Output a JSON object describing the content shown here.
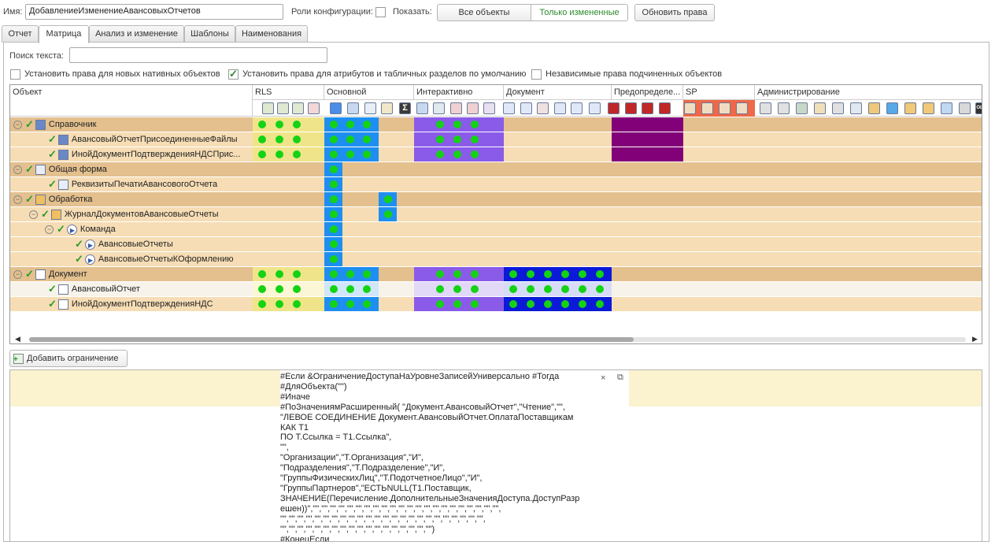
{
  "header": {
    "name_label": "Имя:",
    "name_value": "ДобавлениеИзменениеАвансовыхОтчетов",
    "roles_label": "Роли конфигурации:",
    "show_label": "Показать:",
    "show_all": "Все объекты",
    "show_changed": "Только измененные",
    "refresh": "Обновить права"
  },
  "tabs": [
    "Отчет",
    "Матрица",
    "Анализ и изменение",
    "Шаблоны",
    "Наименования"
  ],
  "search": {
    "label": "Поиск текста:",
    "value": ""
  },
  "options": {
    "opt1": "Установить права для новых нативных объектов",
    "opt2": "Установить права для атрибутов и табличных разделов по умолчанию",
    "opt3": "Независимые права подчиненных объектов"
  },
  "grid": {
    "object_col": "Объект",
    "groups": [
      "RLS",
      "Основной",
      "Интерактивно",
      "Документ",
      "Предопределе...",
      "SP",
      "Администрирование"
    ],
    "rows": [
      {
        "label": "Справочник"
      },
      {
        "label": "АвансовыйОтчетПрисоединенныеФайлы"
      },
      {
        "label": "ИнойДокументПодтвержденияНДСПрис..."
      },
      {
        "label": "Общая форма"
      },
      {
        "label": "РеквизитыПечатиАвансовогоОтчета"
      },
      {
        "label": "Обработка"
      },
      {
        "label": "ЖурналДокументовАвансовыеОтчеты"
      },
      {
        "label": "Команда"
      },
      {
        "label": "АвансовыеОтчеты"
      },
      {
        "label": "АвансовыеОтчетыКОформлению"
      },
      {
        "label": "Документ"
      },
      {
        "label": "АвансовыйОтчет"
      },
      {
        "label": "ИнойДокументПодтвержденияНДС"
      }
    ]
  },
  "add_restriction": "Добавить ограничение",
  "editor": {
    "lines": [
      "#Если &ОграничениеДоступаНаУровнеЗаписейУниверсально #Тогда",
      "#ДляОбъекта(\"\")",
      "#Иначе",
      "#ПоЗначениямРасширенный( \"Документ.АвансовыйОтчет\",\"Чтение\",\"\",",
      "\"ЛЕВОЕ СОЕДИНЕНИЕ Документ.АвансовыйОтчет.ОплатаПоставщикам",
      "КАК Т1",
      "ПО Т.Ссылка = Т1.Ссылка\",",
      "\"\",",
      "\"Организации\",\"Т.Организация\",\"И\",",
      "\"Подразделения\",\"Т.Подразделение\",\"И\",",
      "\"ГруппыФизическихЛиц\",\"Т.ПодотчетноеЛицо\",\"И\",",
      "\"ГруппыПартнеров\",\"ЕСТЬNULL(Т1.Поставщик,",
      "ЗНАЧЕНИЕ(Перечисление.ДополнительныеЗначенияДоступа.ДоступРазр",
      "ешен))\",\"\",\"\",\"\",\"\",\"\",\"\",\"\",\"\",\"\",\"\",\"\",\"\",\"\",\"\",\"\",\"\",\"\",\"\",\"\",\"\",\"\",\"\",",
      "\"\",\"\",\"\",\"\",\"\",\"\",\"\",\"\",\"\",\"\",\"\",\"\",\"\",\"\",\"\",\"\",\"\",\"\",\"\",\"\",\"\",\"\",\"\",\"\",",
      "\"\",\"\",\"\",\"\",\"\",\"\",\"\",\"\",\"\",\"\",\"\",\"\",\"\",\"\",\"\",\"\",\"\",\"\")",
      "#КонецЕсли"
    ]
  },
  "colors": {
    "tan": "#e3c08e",
    "row_light": "#f6ddb5",
    "rls": "#f0e48a",
    "blue": "#1e8ff0",
    "purple": "#8a5be8",
    "navy": "#0a1ad8",
    "maroon": "#820078",
    "dot": "#13d313"
  }
}
